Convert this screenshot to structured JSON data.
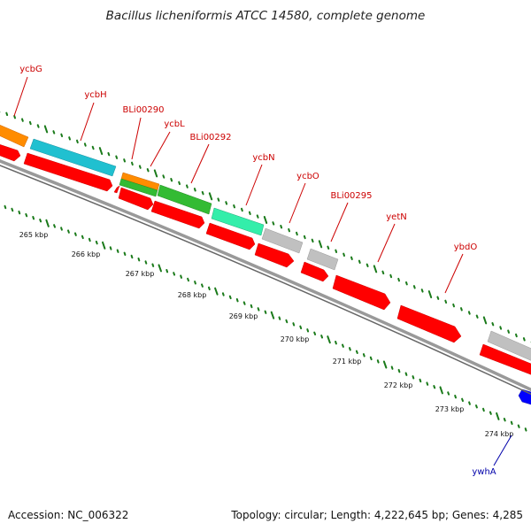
{
  "title": "Bacillus licheniformis ATCC 14580, complete genome",
  "footer": {
    "accession": "Accession: NC_006322",
    "summary": "Topology: circular; Length: 4,222,645 bp; Genes: 4,285"
  },
  "colors": {
    "forward_cds": "#ff0000",
    "reverse_cds_blue": "#0000ff",
    "label_red": "#cc0000",
    "label_blue": "#0000aa",
    "tick_green": "#1a7a1a",
    "backbone": "#888888",
    "cog_orange": "#ff8c00",
    "cog_cyan": "#20c0d0",
    "cog_green": "#33bb33",
    "cog_aqua": "#33eeaa",
    "cog_gray": "#c0c0c0"
  },
  "genes": [
    {
      "name": "ycbG",
      "color": "label_red"
    },
    {
      "name": "ycbH",
      "color": "label_red"
    },
    {
      "name": "BLi00290",
      "color": "label_red"
    },
    {
      "name": "ycbL",
      "color": "label_red"
    },
    {
      "name": "BLi00292",
      "color": "label_red"
    },
    {
      "name": "ycbN",
      "color": "label_red"
    },
    {
      "name": "ycbO",
      "color": "label_red"
    },
    {
      "name": "BLi00295",
      "color": "label_red"
    },
    {
      "name": "yetN",
      "color": "label_red"
    },
    {
      "name": "ybdO",
      "color": "label_red"
    },
    {
      "name": "ywhA",
      "color": "label_blue"
    }
  ],
  "ticks": [
    "265 kbp",
    "266 kbp",
    "267 kbp",
    "268 kbp",
    "269 kbp",
    "270 kbp",
    "271 kbp",
    "272 kbp",
    "273 kbp",
    "274 kbp"
  ]
}
